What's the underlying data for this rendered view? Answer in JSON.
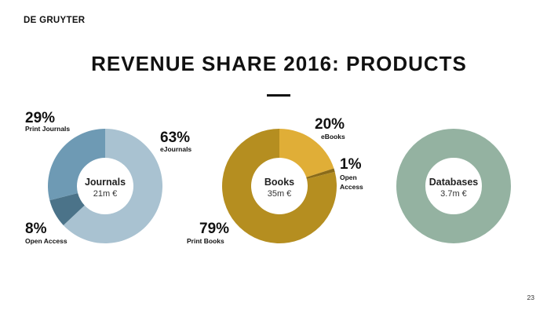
{
  "header": {
    "brand": "DE GRUYTER",
    "title": "REVENUE SHARE 2016: PRODUCTS"
  },
  "footer": {
    "page_number": "23"
  },
  "chart_data": [
    {
      "type": "pie",
      "center_name": "Journals",
      "center_value": "21m €",
      "slices": [
        {
          "name": "eJournals",
          "value": 63,
          "label": "63%",
          "color": "#a9c2d1"
        },
        {
          "name": "Open Access",
          "value": 8,
          "label": "8%",
          "color": "#4b7389"
        },
        {
          "name": "Print Journals",
          "value": 29,
          "label": "29%",
          "color": "#6e9ab4"
        }
      ]
    },
    {
      "type": "pie",
      "center_name": "Books",
      "center_value": "35m €",
      "slices": [
        {
          "name": "eBooks",
          "value": 20,
          "label": "20%",
          "color": "#e0ae37"
        },
        {
          "name": "Open\nAccess",
          "value": 1,
          "label": "1%",
          "color": "#8a6b19"
        },
        {
          "name": "Print Books",
          "value": 79,
          "label": "79%",
          "color": "#b58e20"
        }
      ]
    },
    {
      "type": "pie",
      "center_name": "Databases",
      "center_value": "3.7m €",
      "slices": [
        {
          "name": "",
          "value": 100,
          "label": "",
          "color": "#94b2a1"
        }
      ]
    }
  ]
}
